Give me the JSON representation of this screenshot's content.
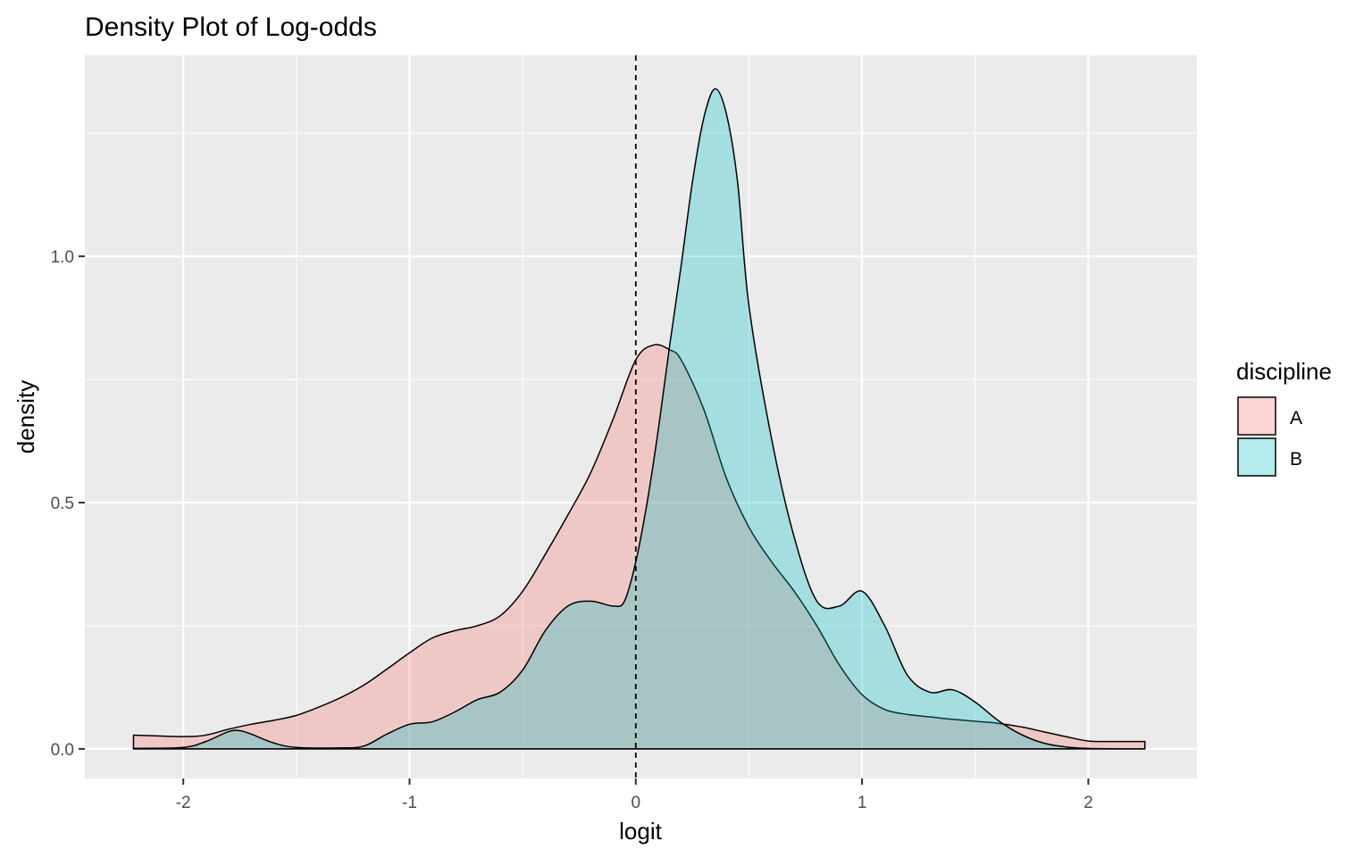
{
  "chart_data": {
    "type": "area",
    "title": "Density Plot of Log-odds",
    "xlabel": "logit",
    "ylabel": "density",
    "xlim": [
      -2.435,
      2.48
    ],
    "ylim": [
      -0.06,
      1.408
    ],
    "x_ticks": [
      -2,
      -1,
      0,
      1,
      2
    ],
    "x_tick_labels": [
      "-2",
      "-1",
      "0",
      "1",
      "2"
    ],
    "y_ticks": [
      0.0,
      0.5,
      1.0
    ],
    "y_tick_labels": [
      "0.0",
      "0.5",
      "1.0"
    ],
    "grid": true,
    "panel_background": "#ebebeb",
    "vline": {
      "x": 0,
      "style": "dashed",
      "color": "#000000"
    },
    "legend": {
      "title": "discipline",
      "position": "right"
    },
    "series": [
      {
        "name": "A",
        "fill": "#F8766D",
        "opacity": 0.3,
        "points": [
          [
            -2.22,
            0.028
          ],
          [
            -2.0,
            0.025
          ],
          [
            -1.9,
            0.028
          ],
          [
            -1.8,
            0.04
          ],
          [
            -1.7,
            0.05
          ],
          [
            -1.6,
            0.058
          ],
          [
            -1.5,
            0.068
          ],
          [
            -1.4,
            0.085
          ],
          [
            -1.3,
            0.105
          ],
          [
            -1.2,
            0.13
          ],
          [
            -1.1,
            0.162
          ],
          [
            -1.0,
            0.195
          ],
          [
            -0.9,
            0.225
          ],
          [
            -0.8,
            0.24
          ],
          [
            -0.7,
            0.25
          ],
          [
            -0.6,
            0.27
          ],
          [
            -0.5,
            0.32
          ],
          [
            -0.4,
            0.395
          ],
          [
            -0.3,
            0.475
          ],
          [
            -0.2,
            0.56
          ],
          [
            -0.1,
            0.67
          ],
          [
            0.0,
            0.79
          ],
          [
            0.08,
            0.82
          ],
          [
            0.15,
            0.81
          ],
          [
            0.2,
            0.79
          ],
          [
            0.3,
            0.69
          ],
          [
            0.4,
            0.55
          ],
          [
            0.5,
            0.45
          ],
          [
            0.6,
            0.38
          ],
          [
            0.7,
            0.32
          ],
          [
            0.8,
            0.25
          ],
          [
            0.9,
            0.17
          ],
          [
            1.0,
            0.11
          ],
          [
            1.1,
            0.08
          ],
          [
            1.2,
            0.07
          ],
          [
            1.3,
            0.065
          ],
          [
            1.4,
            0.06
          ],
          [
            1.5,
            0.056
          ],
          [
            1.6,
            0.052
          ],
          [
            1.7,
            0.045
          ],
          [
            1.8,
            0.035
          ],
          [
            1.9,
            0.025
          ],
          [
            2.0,
            0.016
          ],
          [
            2.1,
            0.015
          ],
          [
            2.25,
            0.015
          ]
        ]
      },
      {
        "name": "B",
        "fill": "#00BFC4",
        "opacity": 0.3,
        "points": [
          [
            -2.22,
            0.001
          ],
          [
            -2.0,
            0.003
          ],
          [
            -1.9,
            0.015
          ],
          [
            -1.8,
            0.035
          ],
          [
            -1.75,
            0.037
          ],
          [
            -1.7,
            0.03
          ],
          [
            -1.6,
            0.012
          ],
          [
            -1.5,
            0.003
          ],
          [
            -1.3,
            0.002
          ],
          [
            -1.2,
            0.006
          ],
          [
            -1.1,
            0.03
          ],
          [
            -1.0,
            0.05
          ],
          [
            -0.9,
            0.055
          ],
          [
            -0.8,
            0.075
          ],
          [
            -0.7,
            0.1
          ],
          [
            -0.6,
            0.115
          ],
          [
            -0.5,
            0.16
          ],
          [
            -0.4,
            0.24
          ],
          [
            -0.3,
            0.29
          ],
          [
            -0.2,
            0.3
          ],
          [
            -0.1,
            0.29
          ],
          [
            -0.05,
            0.3
          ],
          [
            0.0,
            0.38
          ],
          [
            0.05,
            0.5
          ],
          [
            0.1,
            0.65
          ],
          [
            0.15,
            0.82
          ],
          [
            0.2,
            0.98
          ],
          [
            0.25,
            1.15
          ],
          [
            0.3,
            1.28
          ],
          [
            0.35,
            1.34
          ],
          [
            0.4,
            1.29
          ],
          [
            0.45,
            1.15
          ],
          [
            0.5,
            0.9
          ],
          [
            0.6,
            0.63
          ],
          [
            0.7,
            0.43
          ],
          [
            0.8,
            0.3
          ],
          [
            0.9,
            0.29
          ],
          [
            1.0,
            0.32
          ],
          [
            1.1,
            0.25
          ],
          [
            1.2,
            0.15
          ],
          [
            1.3,
            0.115
          ],
          [
            1.4,
            0.12
          ],
          [
            1.5,
            0.095
          ],
          [
            1.6,
            0.058
          ],
          [
            1.7,
            0.03
          ],
          [
            1.8,
            0.012
          ],
          [
            1.9,
            0.004
          ],
          [
            2.0,
            0.001
          ],
          [
            2.25,
            0.0
          ]
        ]
      }
    ]
  }
}
